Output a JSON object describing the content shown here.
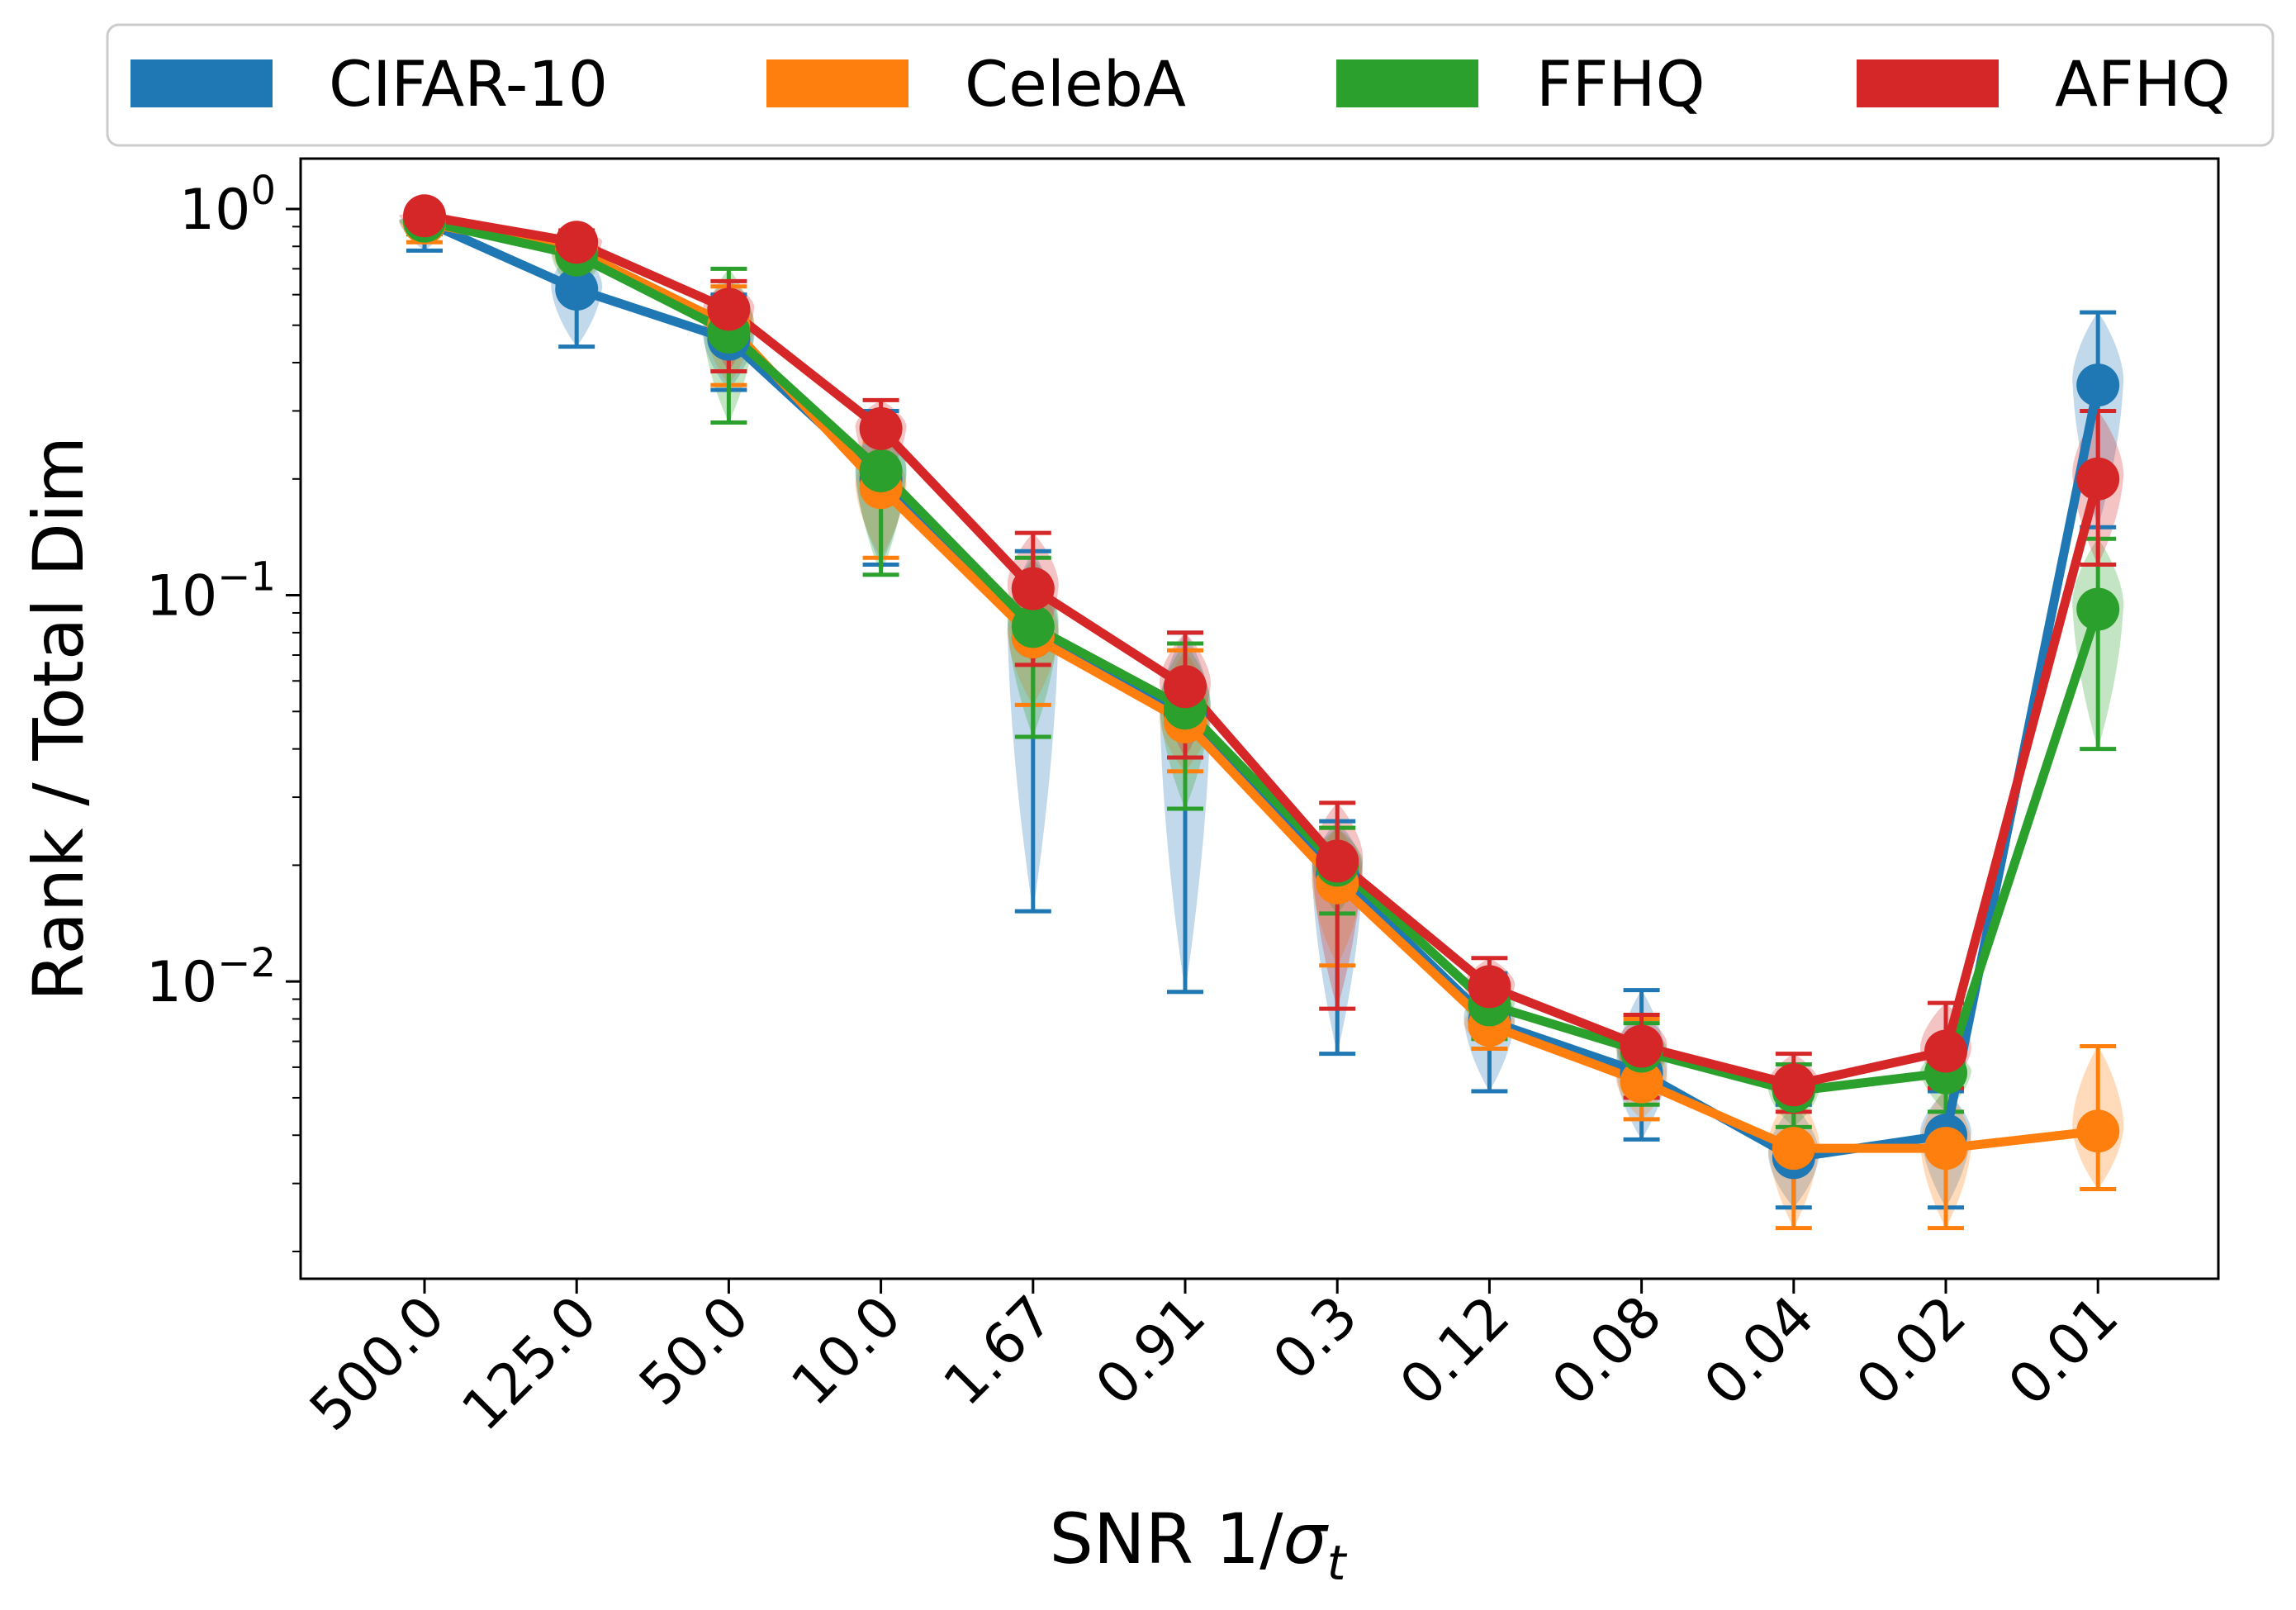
{
  "chart_data": {
    "type": "line",
    "xlabel_main": "SNR 1/",
    "xlabel_sigma": "σ",
    "xlabel_sub": "t",
    "ylabel": "Rank / Total Dim",
    "yscale": "log",
    "ylim": [
      0.0017,
      1.35
    ],
    "yticks": [
      {
        "value": 1,
        "base": "10",
        "exp": "0"
      },
      {
        "value": 0.1,
        "base": "10",
        "exp": "−1"
      },
      {
        "value": 0.01,
        "base": "10",
        "exp": "−2"
      }
    ],
    "categories": [
      "500.0",
      "125.0",
      "50.0",
      "10.0",
      "1.67",
      "0.91",
      "0.3",
      "0.12",
      "0.08",
      "0.04",
      "0.02",
      "0.01"
    ],
    "grid": false,
    "legend_position": "top, outside plot, horizontal",
    "error_bars": true,
    "violins": true,
    "series": [
      {
        "name": "CIFAR-10",
        "color": "#1f77b4",
        "values": [
          0.93,
          0.62,
          0.46,
          0.2,
          0.078,
          0.049,
          0.019,
          0.0079,
          0.0058,
          0.0035,
          0.004,
          0.35
        ],
        "err_low": [
          0.78,
          0.44,
          0.34,
          0.12,
          0.0152,
          0.0094,
          0.0065,
          0.0052,
          0.0039,
          0.0026,
          0.0026,
          0.15
        ],
        "err_high": [
          0.97,
          0.8,
          0.6,
          0.3,
          0.13,
          0.08,
          0.026,
          0.0105,
          0.0095,
          0.0048,
          0.0052,
          0.54
        ]
      },
      {
        "name": "CelebA",
        "color": "#ff7f0e",
        "values": [
          0.92,
          0.78,
          0.5,
          0.19,
          0.078,
          0.047,
          0.018,
          0.0077,
          0.0055,
          0.0037,
          0.0037,
          0.0041
        ],
        "err_low": [
          0.82,
          0.62,
          0.35,
          0.125,
          0.052,
          0.035,
          0.011,
          0.0067,
          0.0044,
          0.0023,
          0.0023,
          0.0029
        ],
        "err_high": [
          0.97,
          0.85,
          0.63,
          0.25,
          0.11,
          0.072,
          0.025,
          0.0092,
          0.008,
          0.0052,
          0.0053,
          0.0068
        ]
      },
      {
        "name": "FFHQ",
        "color": "#2ca02c",
        "values": [
          0.93,
          0.76,
          0.48,
          0.21,
          0.083,
          0.051,
          0.02,
          0.0087,
          0.0066,
          0.0052,
          0.0058,
          0.092
        ],
        "err_low": [
          0.86,
          0.6,
          0.28,
          0.113,
          0.043,
          0.028,
          0.015,
          0.0071,
          0.0048,
          0.0042,
          0.0046,
          0.04
        ],
        "err_high": [
          0.97,
          0.87,
          0.7,
          0.28,
          0.125,
          0.075,
          0.025,
          0.01,
          0.0078,
          0.0061,
          0.0067,
          0.14
        ]
      },
      {
        "name": "AFHQ",
        "color": "#d62728",
        "values": [
          0.96,
          0.82,
          0.55,
          0.27,
          0.104,
          0.058,
          0.0205,
          0.0097,
          0.0068,
          0.0054,
          0.0066,
          0.2
        ],
        "err_low": [
          0.88,
          0.65,
          0.38,
          0.19,
          0.066,
          0.038,
          0.0085,
          0.008,
          0.005,
          0.0046,
          0.0053,
          0.12
        ],
        "err_high": [
          0.98,
          0.88,
          0.65,
          0.32,
          0.145,
          0.08,
          0.029,
          0.0115,
          0.0082,
          0.0065,
          0.0088,
          0.3
        ]
      }
    ]
  }
}
